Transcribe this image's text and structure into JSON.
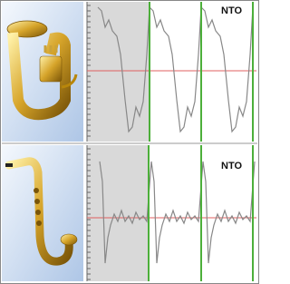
{
  "panels": [
    {
      "label": "NTO"
    },
    {
      "label": "NTO"
    }
  ]
}
